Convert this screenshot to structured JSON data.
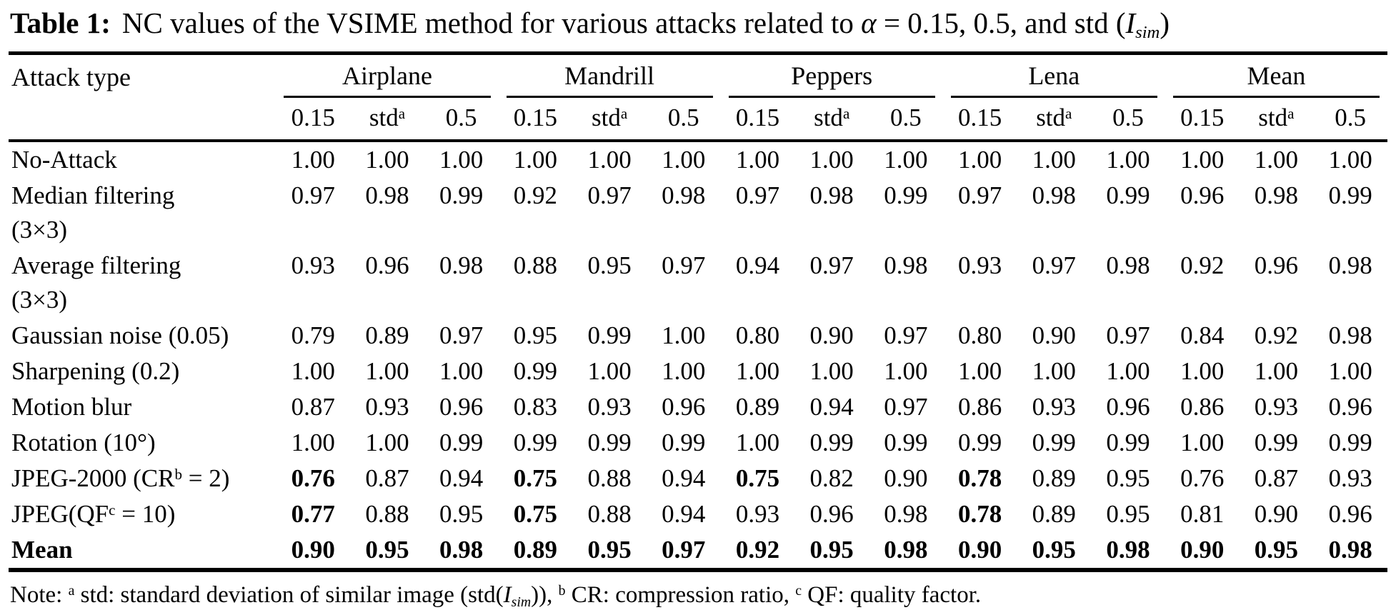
{
  "page": {
    "background": "#ffffff",
    "text_color": "#000000"
  },
  "title": {
    "segments": [
      {
        "t": "Table 1:",
        "b": true
      },
      {
        "t": "NC values of the VSIME method for various attacks related to "
      },
      {
        "t": "α",
        "i": true
      },
      {
        "t": " = 0.15, 0.5, and std ("
      },
      {
        "t": "I",
        "i": true
      },
      {
        "t": "sim",
        "i": true,
        "sub": true
      },
      {
        "t": ")"
      }
    ]
  },
  "table": {
    "corner_header": "Attack type",
    "groups": [
      "Airplane",
      "Mandrill",
      "Peppers",
      "Lena",
      "Mean"
    ],
    "subheaders": [
      [
        {
          "t": "0.15"
        }
      ],
      [
        {
          "t": "std"
        },
        {
          "t": "a",
          "sup": true
        }
      ],
      [
        {
          "t": "0.5"
        }
      ]
    ],
    "rows": [
      {
        "label_lines": [
          [
            {
              "t": "No-Attack"
            }
          ]
        ],
        "values": [
          "1.00",
          "1.00",
          "1.00",
          "1.00",
          "1.00",
          "1.00",
          "1.00",
          "1.00",
          "1.00",
          "1.00",
          "1.00",
          "1.00",
          "1.00",
          "1.00",
          "1.00"
        ],
        "bold_cols": [],
        "bold_row": false
      },
      {
        "label_lines": [
          [
            {
              "t": "Median filtering"
            }
          ],
          [
            {
              "t": "(3×3)"
            }
          ]
        ],
        "values": [
          "0.97",
          "0.98",
          "0.99",
          "0.92",
          "0.97",
          "0.98",
          "0.97",
          "0.98",
          "0.99",
          "0.97",
          "0.98",
          "0.99",
          "0.96",
          "0.98",
          "0.99"
        ],
        "bold_cols": [],
        "bold_row": false
      },
      {
        "label_lines": [
          [
            {
              "t": "Average filtering"
            }
          ],
          [
            {
              "t": "(3×3)"
            }
          ]
        ],
        "values": [
          "0.93",
          "0.96",
          "0.98",
          "0.88",
          "0.95",
          "0.97",
          "0.94",
          "0.97",
          "0.98",
          "0.93",
          "0.97",
          "0.98",
          "0.92",
          "0.96",
          "0.98"
        ],
        "bold_cols": [],
        "bold_row": false
      },
      {
        "label_lines": [
          [
            {
              "t": "Gaussian noise (0.05)"
            }
          ]
        ],
        "values": [
          "0.79",
          "0.89",
          "0.97",
          "0.95",
          "0.99",
          "1.00",
          "0.80",
          "0.90",
          "0.97",
          "0.80",
          "0.90",
          "0.97",
          "0.84",
          "0.92",
          "0.98"
        ],
        "bold_cols": [],
        "bold_row": false
      },
      {
        "label_lines": [
          [
            {
              "t": "Sharpening (0.2)"
            }
          ]
        ],
        "values": [
          "1.00",
          "1.00",
          "1.00",
          "0.99",
          "1.00",
          "1.00",
          "1.00",
          "1.00",
          "1.00",
          "1.00",
          "1.00",
          "1.00",
          "1.00",
          "1.00",
          "1.00"
        ],
        "bold_cols": [],
        "bold_row": false
      },
      {
        "label_lines": [
          [
            {
              "t": "Motion blur"
            }
          ]
        ],
        "values": [
          "0.87",
          "0.93",
          "0.96",
          "0.83",
          "0.93",
          "0.96",
          "0.89",
          "0.94",
          "0.97",
          "0.86",
          "0.93",
          "0.96",
          "0.86",
          "0.93",
          "0.96"
        ],
        "bold_cols": [],
        "bold_row": false
      },
      {
        "label_lines": [
          [
            {
              "t": "Rotation (10°)"
            }
          ]
        ],
        "values": [
          "1.00",
          "1.00",
          "0.99",
          "0.99",
          "0.99",
          "0.99",
          "1.00",
          "0.99",
          "0.99",
          "0.99",
          "0.99",
          "0.99",
          "1.00",
          "0.99",
          "0.99"
        ],
        "bold_cols": [],
        "bold_row": false
      },
      {
        "label_lines": [
          [
            {
              "t": "JPEG-2000 (CR"
            },
            {
              "t": "b",
              "sup": true
            },
            {
              "t": " = 2)"
            }
          ]
        ],
        "values": [
          "0.76",
          "0.87",
          "0.94",
          "0.75",
          "0.88",
          "0.94",
          "0.75",
          "0.82",
          "0.90",
          "0.78",
          "0.89",
          "0.95",
          "0.76",
          "0.87",
          "0.93"
        ],
        "bold_cols": [
          0,
          3,
          6,
          9
        ],
        "bold_row": false
      },
      {
        "label_lines": [
          [
            {
              "t": "JPEG(QF"
            },
            {
              "t": "c",
              "sup": true
            },
            {
              "t": " = 10)"
            }
          ]
        ],
        "values": [
          "0.77",
          "0.88",
          "0.95",
          "0.75",
          "0.88",
          "0.94",
          "0.93",
          "0.96",
          "0.98",
          "0.78",
          "0.89",
          "0.95",
          "0.81",
          "0.90",
          "0.96"
        ],
        "bold_cols": [
          0,
          3,
          9
        ],
        "bold_row": false
      },
      {
        "label_lines": [
          [
            {
              "t": "Mean"
            }
          ]
        ],
        "values": [
          "0.90",
          "0.95",
          "0.98",
          "0.89",
          "0.95",
          "0.97",
          "0.92",
          "0.95",
          "0.98",
          "0.90",
          "0.95",
          "0.98",
          "0.90",
          "0.95",
          "0.98"
        ],
        "bold_cols": [],
        "bold_row": true
      }
    ]
  },
  "note": {
    "segments": [
      {
        "t": "Note: "
      },
      {
        "t": "a",
        "sup": true
      },
      {
        "t": " std: standard deviation of similar image (std("
      },
      {
        "t": "I",
        "i": true
      },
      {
        "t": "sim",
        "i": true,
        "sub": true
      },
      {
        "t": ")), "
      },
      {
        "t": "b",
        "sup": true
      },
      {
        "t": " CR: compression ratio, "
      },
      {
        "t": "c",
        "sup": true
      },
      {
        "t": " QF: quality factor."
      }
    ]
  }
}
